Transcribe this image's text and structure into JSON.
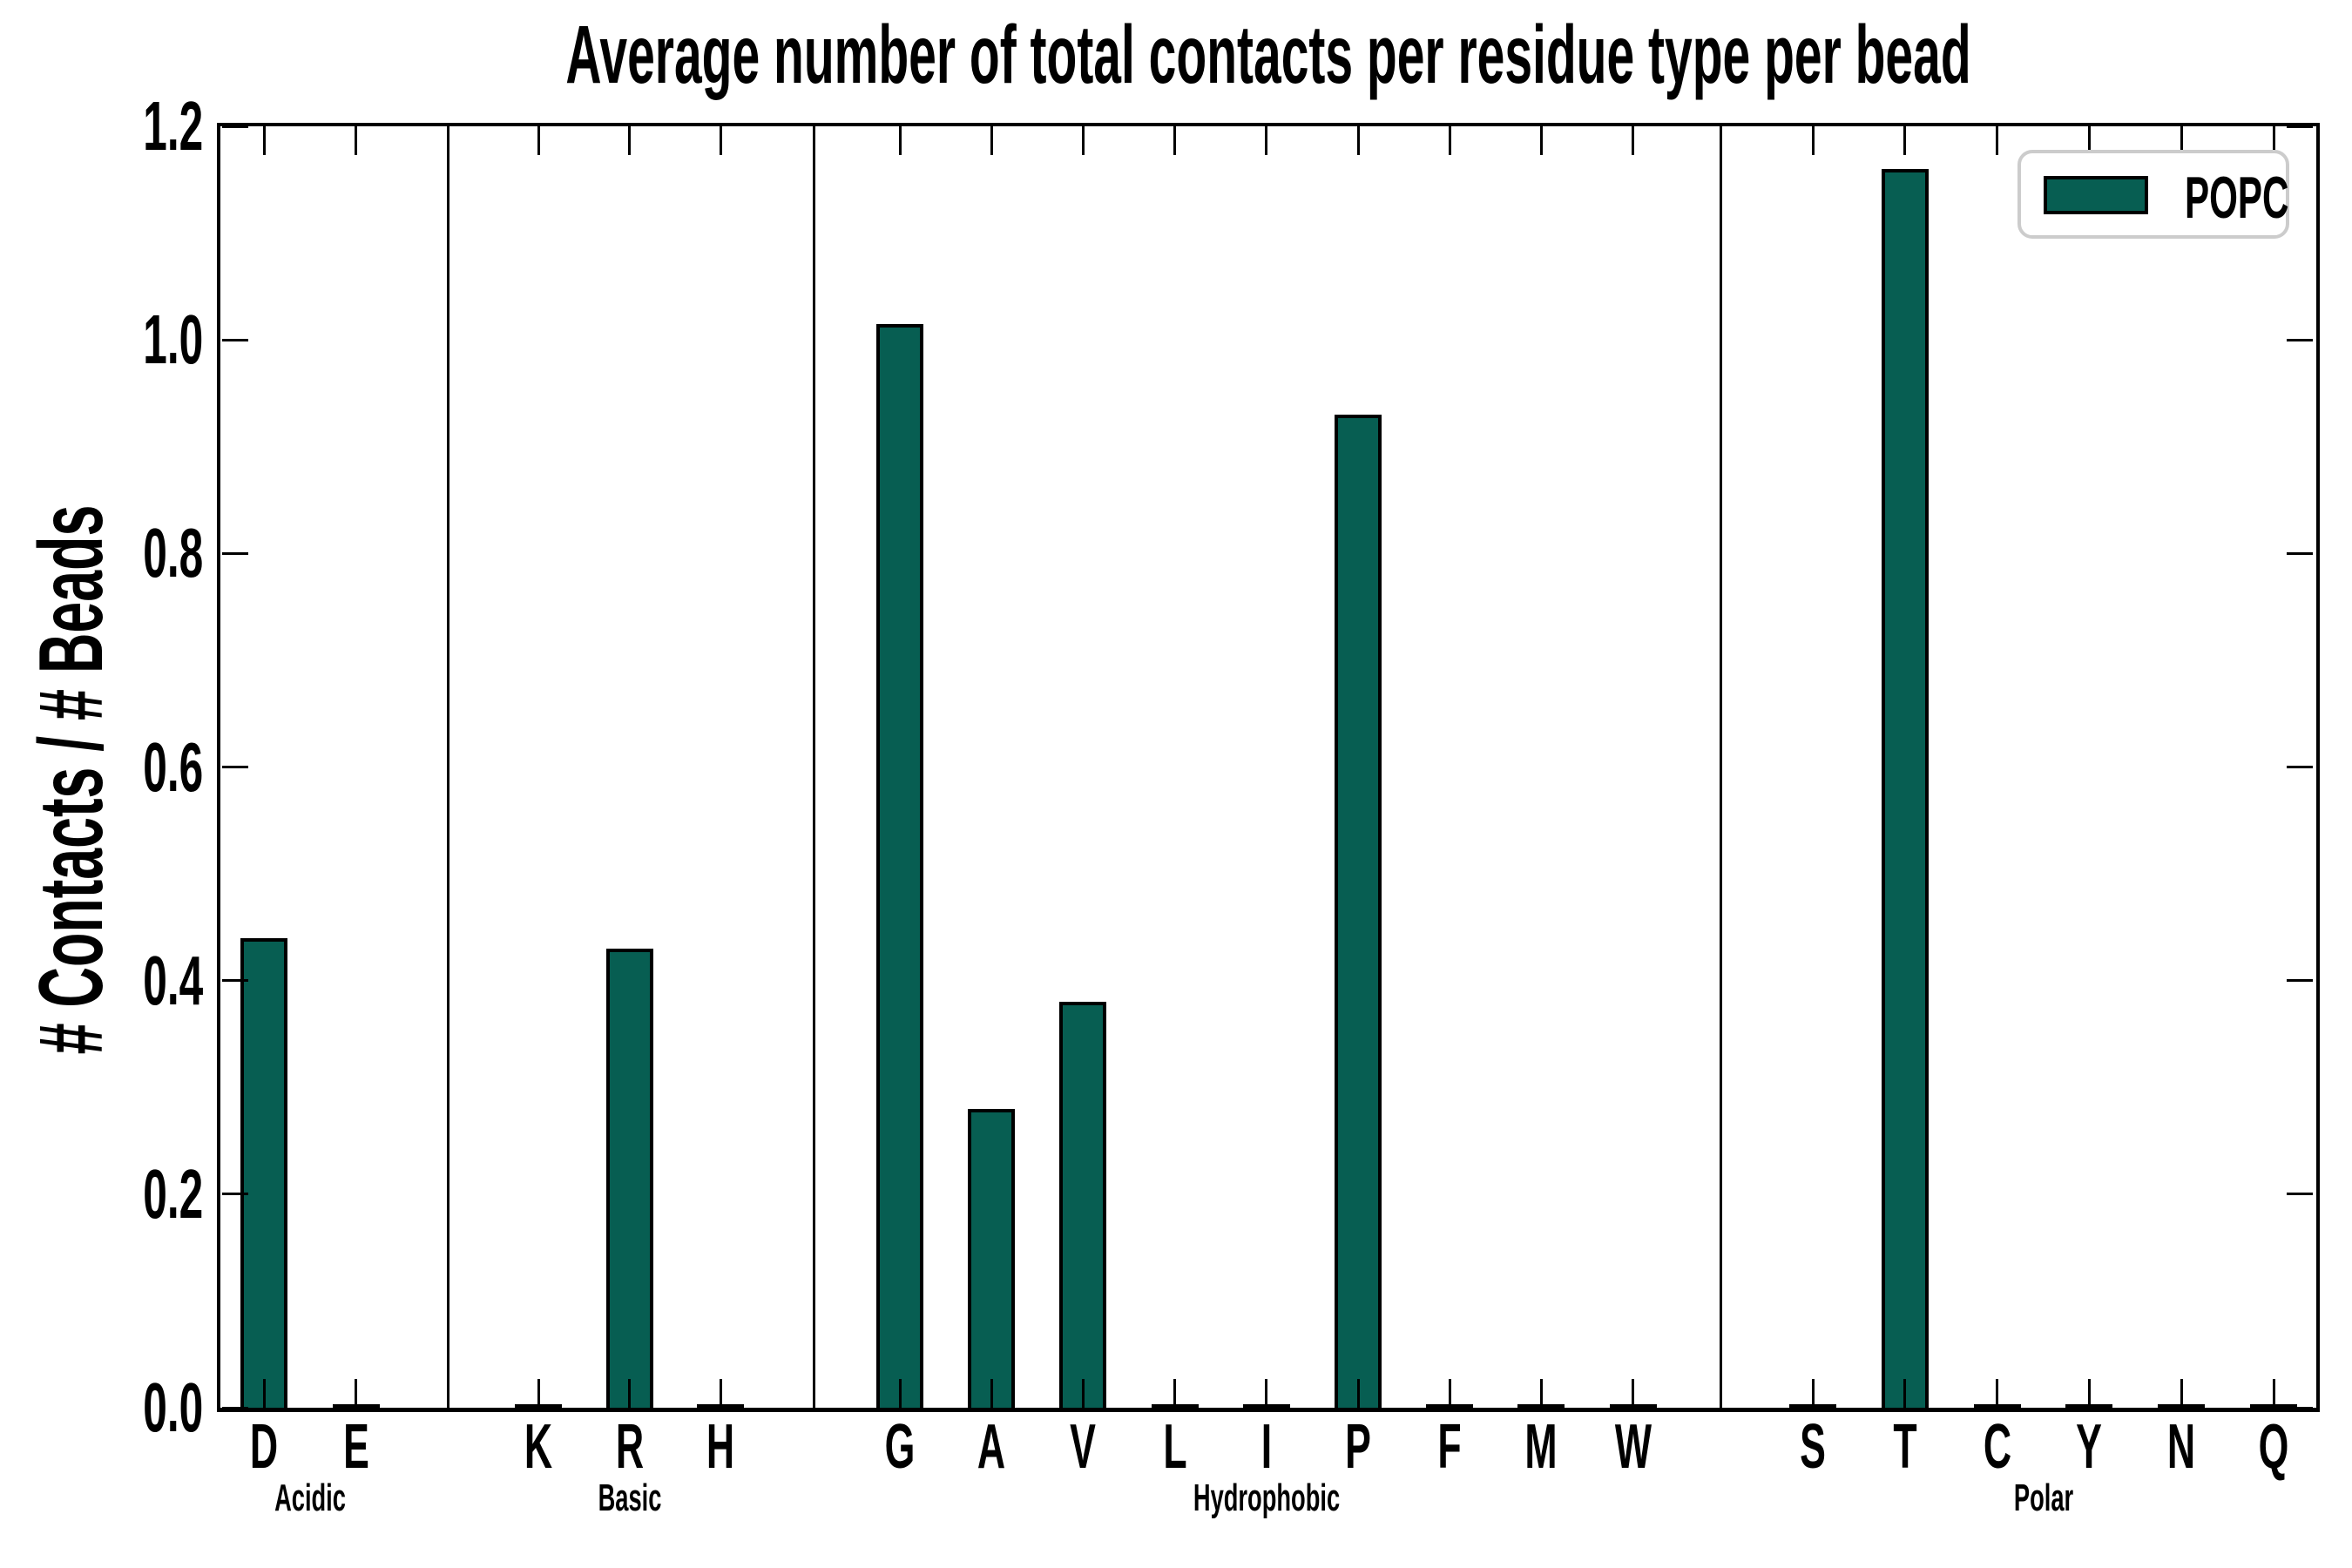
{
  "colors": {
    "bar_fill": "#075E52",
    "bar_edge": "#000000",
    "axis": "#000000",
    "legend_border": "#CCCCCC",
    "background": "#FFFFFF"
  },
  "chart_data": {
    "type": "bar",
    "title": "Average number of total contacts per residue type per bead",
    "xlabel": "",
    "ylabel": "# Contacts / # Beads",
    "ylim": [
      0.0,
      1.2
    ],
    "y_ticks": [
      0.0,
      0.2,
      0.4,
      0.6,
      0.8,
      1.0,
      1.2
    ],
    "y_tick_labels": [
      "0.0",
      "0.2",
      "0.4",
      "0.6",
      "0.8",
      "1.0",
      "1.2"
    ],
    "grid": false,
    "legend_label": "POPC",
    "legend_position": "upper right",
    "groups": [
      {
        "label": "Acidic",
        "categories": [
          "D",
          "E"
        ],
        "values": [
          0.44,
          0.003
        ]
      },
      {
        "label": "Basic",
        "categories": [
          "K",
          "R",
          "H"
        ],
        "values": [
          0.003,
          0.43,
          0.003
        ]
      },
      {
        "label": "Hydrophobic",
        "categories": [
          "G",
          "A",
          "V",
          "L",
          "I",
          "P",
          "F",
          "M",
          "W"
        ],
        "values": [
          1.015,
          0.28,
          0.38,
          0.003,
          0.003,
          0.93,
          0.003,
          0.003,
          0.003
        ]
      },
      {
        "label": "Polar",
        "categories": [
          "S",
          "T",
          "C",
          "Y",
          "N",
          "Q"
        ],
        "values": [
          0.003,
          1.16,
          0.003,
          0.003,
          0.003,
          0.003
        ]
      }
    ]
  }
}
